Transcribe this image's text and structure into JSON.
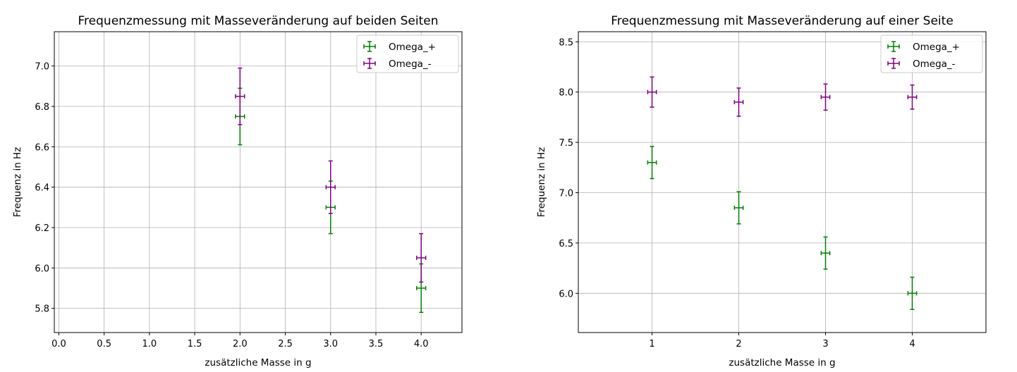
{
  "colors": {
    "omega_plus": "#008000",
    "omega_minus": "#800080",
    "grid": "#b0b0b0",
    "axes": "#000000"
  },
  "chart_data": [
    {
      "type": "scatter",
      "title": "Frequenzmessung mit Masseveränderung auf beiden Seiten",
      "xlabel": "zusätzliche Masse in g",
      "ylabel": "Frequenz in Hz",
      "xlim": [
        -0.05,
        4.45
      ],
      "ylim": [
        5.68,
        7.17
      ],
      "xticks": [
        0.0,
        0.5,
        1.0,
        1.5,
        2.0,
        2.5,
        3.0,
        3.5,
        4.0
      ],
      "xtick_labels": [
        "0.0",
        "0.5",
        "1.0",
        "1.5",
        "2.0",
        "2.5",
        "3.0",
        "3.5",
        "4.0"
      ],
      "yticks": [
        5.8,
        6.0,
        6.2,
        6.4,
        6.6,
        6.8,
        7.0
      ],
      "ytick_labels": [
        "5.8",
        "6.0",
        "6.2",
        "6.4",
        "6.6",
        "6.8",
        "7.0"
      ],
      "grid": true,
      "legend": "top-right",
      "series": [
        {
          "name": "Omega_+",
          "color": "#008000",
          "x": [
            2,
            3,
            4
          ],
          "y": [
            6.75,
            6.3,
            5.9
          ],
          "yerr": [
            0.14,
            0.13,
            0.12
          ],
          "xerr": [
            0.05,
            0.05,
            0.05
          ]
        },
        {
          "name": "Omega_-",
          "color": "#800080",
          "x": [
            2,
            3,
            4
          ],
          "y": [
            6.85,
            6.4,
            6.05
          ],
          "yerr": [
            0.14,
            0.13,
            0.12
          ],
          "xerr": [
            0.05,
            0.05,
            0.05
          ]
        }
      ]
    },
    {
      "type": "scatter",
      "title": "Frequenzmessung mit Masseveränderung auf einer Seite",
      "xlabel": "zusätzliche Masse in g",
      "ylabel": "Frequenz in Hz",
      "xlim": [
        0.15,
        4.85
      ],
      "ylim": [
        5.61,
        8.6
      ],
      "xticks": [
        1,
        2,
        3,
        4
      ],
      "xtick_labels": [
        "1",
        "2",
        "3",
        "4"
      ],
      "yticks": [
        6.0,
        6.5,
        7.0,
        7.5,
        8.0,
        8.5
      ],
      "ytick_labels": [
        "6.0",
        "6.5",
        "7.0",
        "7.5",
        "8.0",
        "8.5"
      ],
      "grid": true,
      "legend": "top-right",
      "series": [
        {
          "name": "Omega_+",
          "color": "#008000",
          "x": [
            1,
            2,
            3,
            4
          ],
          "y": [
            7.3,
            6.85,
            6.4,
            6.0
          ],
          "yerr": [
            0.16,
            0.16,
            0.16,
            0.16
          ],
          "xerr": [
            0.05,
            0.05,
            0.05,
            0.05
          ]
        },
        {
          "name": "Omega_-",
          "color": "#800080",
          "x": [
            1,
            2,
            3,
            4
          ],
          "y": [
            8.0,
            7.9,
            7.95,
            7.95
          ],
          "yerr": [
            0.15,
            0.14,
            0.13,
            0.12
          ],
          "xerr": [
            0.05,
            0.05,
            0.05,
            0.05
          ]
        }
      ]
    }
  ]
}
